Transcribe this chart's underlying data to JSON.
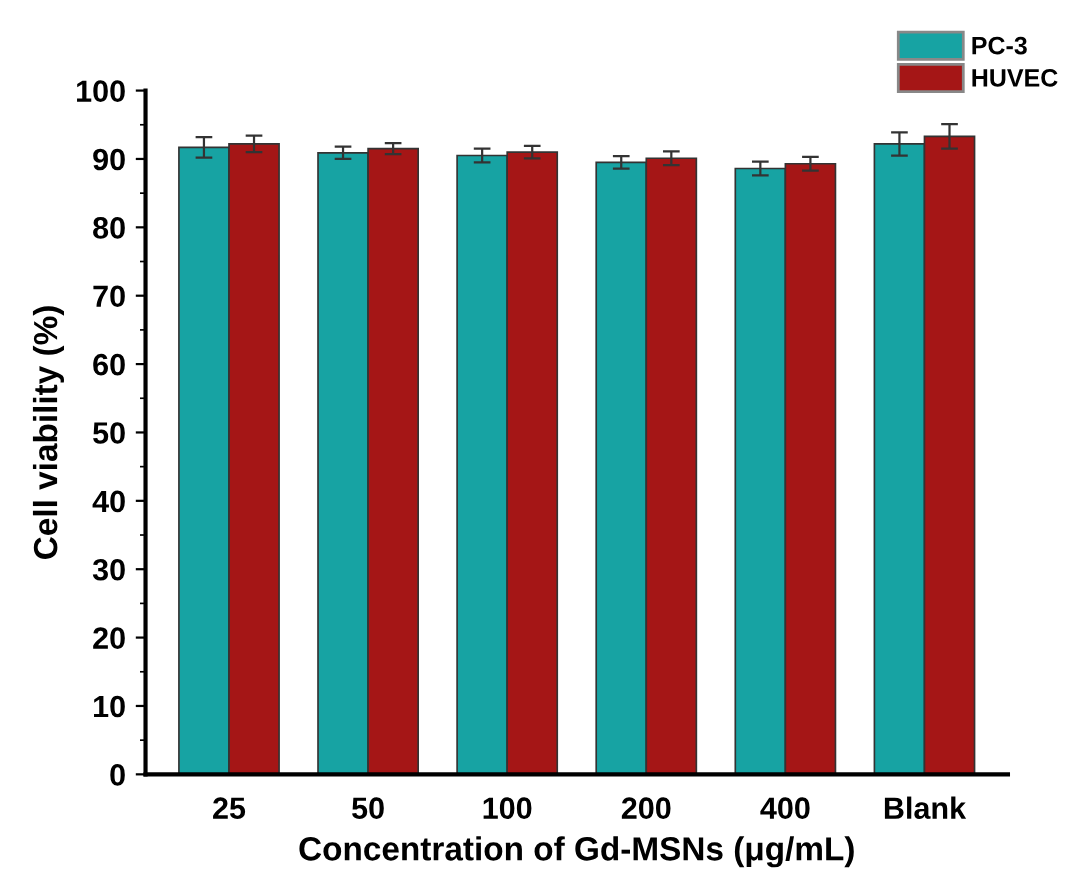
{
  "chart_data": {
    "type": "bar",
    "xlabel": "Concentration of Gd-MSNs (μg/mL)",
    "ylabel": "Cell viability (%)",
    "categories": [
      "25",
      "50",
      "100",
      "200",
      "400",
      "Blank"
    ],
    "series": [
      {
        "name": "PC-3",
        "color": "#17a3a3",
        "values": [
          91.7,
          90.9,
          90.5,
          89.5,
          88.6,
          92.2
        ],
        "errors": [
          1.5,
          0.9,
          1.0,
          0.9,
          1.0,
          1.7
        ]
      },
      {
        "name": "HUVEC",
        "color": "#a51616",
        "values": [
          92.2,
          91.5,
          91.0,
          90.1,
          89.3,
          93.3
        ],
        "errors": [
          1.2,
          0.8,
          0.9,
          1.0,
          1.0,
          1.8
        ]
      }
    ],
    "ylim": [
      0,
      100
    ],
    "yticks": [
      0,
      10,
      20,
      30,
      40,
      50,
      60,
      70,
      80,
      90,
      100
    ],
    "grid": false,
    "legend": "top right"
  }
}
